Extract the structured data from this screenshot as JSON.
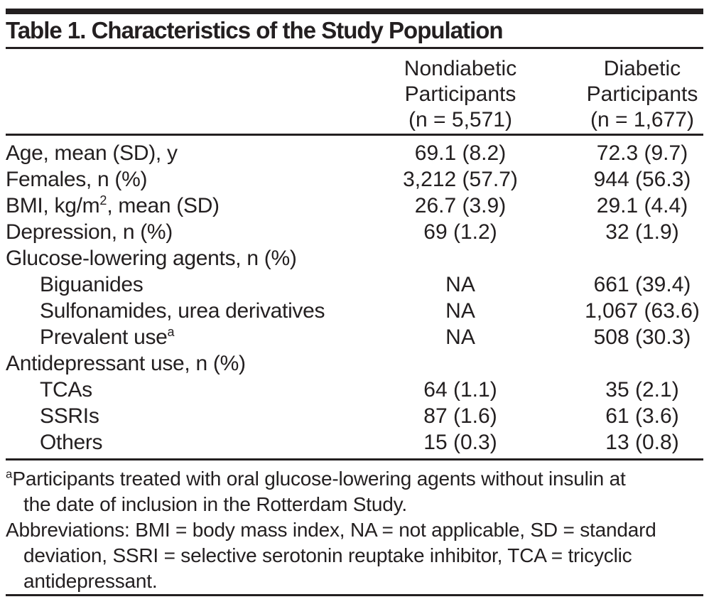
{
  "title": "Table 1. Characteristics of the Study Population",
  "columns": {
    "nondiabetic": {
      "lines": [
        "Nondiabetic",
        "Participants",
        "(n = 5,571)"
      ]
    },
    "diabetic": {
      "lines": [
        "Diabetic",
        "Participants",
        "(n = 1,677)"
      ]
    }
  },
  "rows": [
    {
      "label": "Age, mean (SD), y",
      "col1": "69.1 (8.2)",
      "col2": "72.3 (9.7)"
    },
    {
      "label": "Females, n (%)",
      "col1": "3,212 (57.7)",
      "col2": "944 (56.3)"
    },
    {
      "label": "BMI, kg/m",
      "label_sup": "2",
      "label_post": ", mean (SD)",
      "col1": "26.7 (3.9)",
      "col2": "29.1 (4.4)"
    },
    {
      "label": "Depression, n (%)",
      "col1": "69 (1.2)",
      "col2": "32 (1.9)"
    },
    {
      "label": "Glucose-lowering agents, n (%)",
      "col1": "",
      "col2": ""
    },
    {
      "label": "Biguanides",
      "col1": "NA",
      "col2": "661 (39.4)"
    },
    {
      "label": "Sulfonamides, urea derivatives",
      "col1": "NA",
      "col2": "1,067 (63.6)"
    },
    {
      "label": "Prevalent use",
      "label_sup": "a",
      "col1": "NA",
      "col2": "508 (30.3)"
    },
    {
      "label": "Antidepressant use, n (%)",
      "col1": "",
      "col2": ""
    },
    {
      "label": "TCAs",
      "col1": "64 (1.1)",
      "col2": "35 (2.1)"
    },
    {
      "label": "SSRIs",
      "col1": "87 (1.6)",
      "col2": "61 (3.6)"
    },
    {
      "label": "Others",
      "col1": "15 (0.3)",
      "col2": "13 (0.8)"
    }
  ],
  "footnotes": {
    "note_a_marker": "a",
    "note_a_lines": [
      "Participants treated with oral glucose-lowering agents without insulin at",
      "the date of inclusion in the Rotterdam Study."
    ],
    "abbrev_lines": [
      "Abbreviations: BMI = body mass index, NA = not applicable, SD = standard",
      "deviation, SSRI = selective serotonin reuptake inhibitor, TCA = tricyclic",
      "antidepressant."
    ]
  },
  "colors": {
    "ink": "#231f20",
    "background": "#ffffff"
  }
}
